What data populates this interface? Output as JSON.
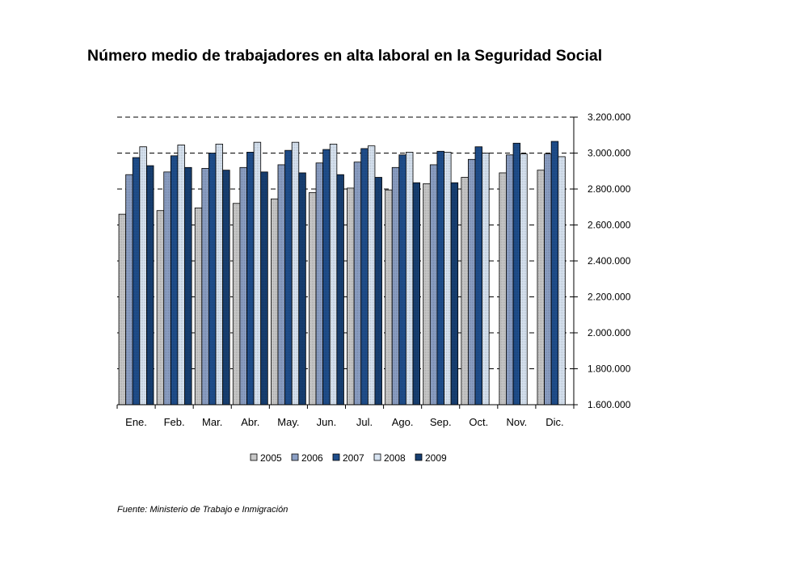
{
  "title": "Número medio de trabajadores en alta laboral en la Seguridad Social",
  "source": "Fuente: Ministerio de Trabajo e Inmigración",
  "chart_data": {
    "type": "bar",
    "title": "Número medio de trabajadores en alta laboral en la Seguridad Social",
    "xlabel": "",
    "ylabel": "",
    "categories": [
      "Ene.",
      "Feb.",
      "Mar.",
      "Abr.",
      "May.",
      "Jun.",
      "Jul.",
      "Ago.",
      "Sep.",
      "Oct.",
      "Nov.",
      "Dic."
    ],
    "ylim": [
      1600000,
      3200000
    ],
    "yticks": [
      1600000,
      1800000,
      2000000,
      2200000,
      2400000,
      2600000,
      2800000,
      3000000,
      3200000
    ],
    "ytick_labels": [
      "1.600.000",
      "1.800.000",
      "2.000.000",
      "2.200.000",
      "2.400.000",
      "2.600.000",
      "2.800.000",
      "3.000.000",
      "3.200.000"
    ],
    "y_axis_side": "right",
    "grid": "dashed major gridlines",
    "legend_position": "bottom",
    "series": [
      {
        "name": "2005",
        "color": "#c8c8c8",
        "values": [
          2660000,
          2680000,
          2695000,
          2720000,
          2745000,
          2780000,
          2805000,
          2795000,
          2830000,
          2865000,
          2890000,
          2905000
        ]
      },
      {
        "name": "2006",
        "color": "#8b9fc4",
        "values": [
          2880000,
          2895000,
          2915000,
          2920000,
          2935000,
          2945000,
          2950000,
          2920000,
          2935000,
          2965000,
          2990000,
          2995000
        ]
      },
      {
        "name": "2007",
        "color": "#1f4e8c",
        "values": [
          2975000,
          2985000,
          3000000,
          3005000,
          3015000,
          3020000,
          3025000,
          2990000,
          3010000,
          3035000,
          3055000,
          3065000
        ]
      },
      {
        "name": "2008",
        "color": "#d8e4f2",
        "values": [
          3035000,
          3045000,
          3050000,
          3060000,
          3060000,
          3050000,
          3040000,
          3005000,
          3005000,
          3000000,
          2995000,
          2980000
        ]
      },
      {
        "name": "2009",
        "color": "#173f72",
        "values": [
          2930000,
          2920000,
          2905000,
          2895000,
          2890000,
          2880000,
          2865000,
          2835000,
          2835000,
          null,
          null,
          null
        ]
      }
    ]
  }
}
